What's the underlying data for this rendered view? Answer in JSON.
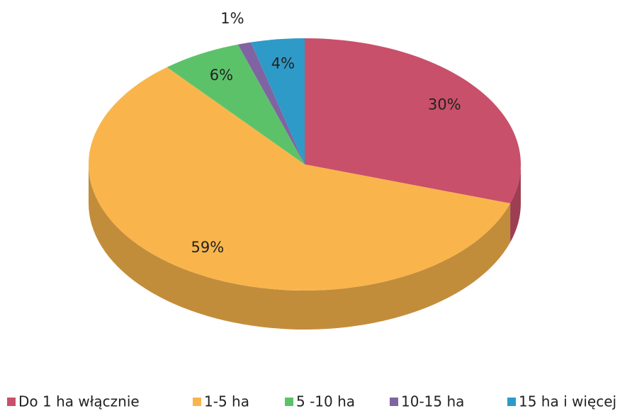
{
  "chart_data": {
    "type": "pie",
    "categories": [
      "Do 1 ha włącznie",
      "1-5 ha",
      "5 -10 ha",
      "10-15 ha",
      "15 ha i więcej"
    ],
    "values": [
      30,
      59,
      6,
      1,
      4
    ],
    "value_labels": [
      "30%",
      "59%",
      "6%",
      "1%",
      "4%"
    ],
    "colors": [
      "#c9506a",
      "#f9b54c",
      "#5cc26a",
      "#8064a2",
      "#2e9ac8"
    ],
    "legend": "bottom"
  }
}
